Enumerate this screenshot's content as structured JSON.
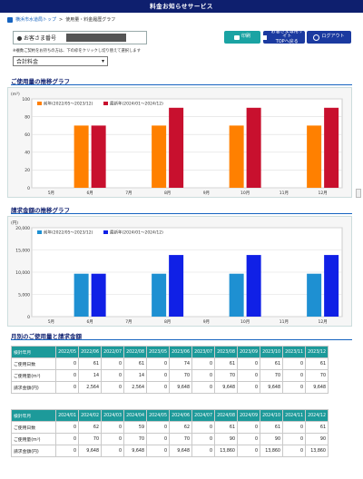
{
  "header": {
    "title": "料金お知らせサービス"
  },
  "breadcrumb": {
    "items": [
      "横浜市水道局トップ",
      "使用量・料金履歴グラフ"
    ],
    "sep": ">"
  },
  "customer": {
    "label": "お客さま番号"
  },
  "buttons": {
    "print": "印刷",
    "back_line1": "お客さま専用サイト",
    "back_line2": "TOPへ戻る",
    "logout": "ログアウト"
  },
  "note": "※複数ご契約をお持ちの方は、下の枠をクリックし切り替えて選択します",
  "select": {
    "value": "合計料金"
  },
  "sections": {
    "usage_chart": "ご使用量の推移グラフ",
    "charge_chart": "請求金額の推移グラフ",
    "table": "月別のご使用量と請求金額"
  },
  "colors": {
    "prev": "#ff8000",
    "prev_charge": "#1e90d2",
    "latest_usage": "#c8102e",
    "latest_charge": "#1020e6",
    "accent": "#1563c0"
  },
  "chart_data": [
    {
      "type": "bar",
      "ylabel": "(m³)",
      "ylim": [
        0,
        100
      ],
      "yticks": [
        0,
        20,
        40,
        60,
        80,
        100
      ],
      "categories": [
        "5月",
        "6月",
        "7月",
        "8月",
        "9月",
        "10月",
        "11月",
        "12月"
      ],
      "series": [
        {
          "name": "前年(2022/05～2023/12)",
          "values": [
            0,
            70,
            0,
            70,
            0,
            70,
            0,
            70
          ]
        },
        {
          "name": "最新年(2024/01～2024/12)",
          "values": [
            0,
            70,
            0,
            90,
            0,
            90,
            0,
            90
          ]
        }
      ],
      "legend": "top-left",
      "grid": true
    },
    {
      "type": "bar",
      "ylabel": "(円)",
      "ylim": [
        0,
        20000
      ],
      "yticks": [
        0,
        5000,
        10000,
        15000,
        20000
      ],
      "yticklabels": [
        "0",
        "5,000",
        "10,000",
        "15,000",
        "20,000"
      ],
      "categories": [
        "5月",
        "6月",
        "7月",
        "8月",
        "9月",
        "10月",
        "11月",
        "12月"
      ],
      "series": [
        {
          "name": "前年(2022/05～2023/12)",
          "values": [
            0,
            9648,
            0,
            9648,
            0,
            9648,
            0,
            9648
          ]
        },
        {
          "name": "最新年(2024/01～2024/12)",
          "values": [
            0,
            9648,
            0,
            13860,
            0,
            13860,
            0,
            13860
          ]
        }
      ],
      "legend": "top-left",
      "grid": true
    }
  ],
  "table1": {
    "header": [
      "検針年月",
      "2022/05",
      "2022/06",
      "2022/07",
      "2022/08",
      "2023/05",
      "2023/06",
      "2023/07",
      "2023/08",
      "2023/09",
      "2023/10",
      "2023/11",
      "2023/12"
    ],
    "rows": [
      [
        "ご使用日数",
        "0",
        "61",
        "0",
        "61",
        "0",
        "74",
        "0",
        "61",
        "0",
        "61",
        "0",
        "61"
      ],
      [
        "ご使用量(m³)",
        "0",
        "14",
        "0",
        "14",
        "0",
        "70",
        "0",
        "70",
        "0",
        "70",
        "0",
        "70"
      ],
      [
        "請求金額(円)",
        "0",
        "2,564",
        "0",
        "2,564",
        "0",
        "9,648",
        "0",
        "9,648",
        "0",
        "9,648",
        "0",
        "9,648"
      ]
    ]
  },
  "table2": {
    "header": [
      "検針年月",
      "2024/01",
      "2024/02",
      "2024/03",
      "2024/04",
      "2024/05",
      "2024/06",
      "2024/07",
      "2024/08",
      "2024/09",
      "2024/10",
      "2024/11",
      "2024/12"
    ],
    "rows": [
      [
        "ご使用日数",
        "0",
        "62",
        "0",
        "59",
        "0",
        "62",
        "0",
        "61",
        "0",
        "61",
        "0",
        "61"
      ],
      [
        "ご使用量(m³)",
        "0",
        "70",
        "0",
        "70",
        "0",
        "70",
        "0",
        "90",
        "0",
        "90",
        "0",
        "90"
      ],
      [
        "請求金額(円)",
        "0",
        "9,648",
        "0",
        "9,648",
        "0",
        "9,648",
        "0",
        "13,860",
        "0",
        "13,860",
        "0",
        "13,860"
      ]
    ]
  }
}
